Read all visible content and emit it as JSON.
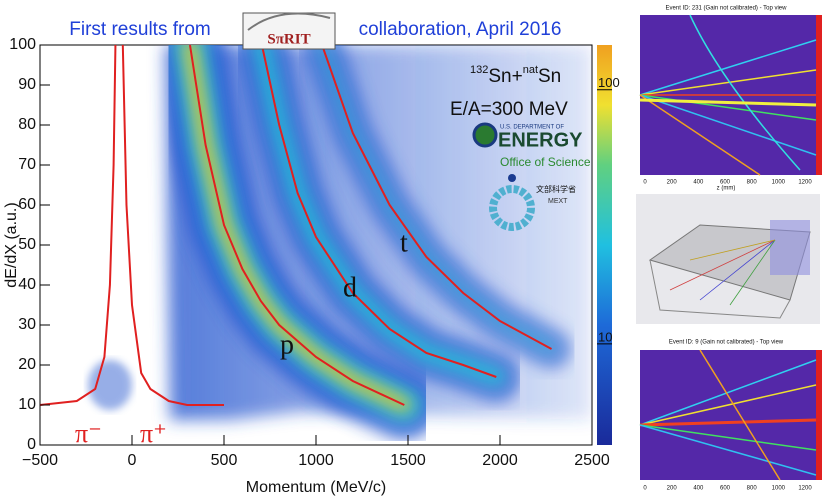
{
  "chart_data": {
    "type": "line",
    "title": {
      "prefix": "First results from",
      "logo": "SπRIT",
      "suffix": "collaboration, April 2016"
    },
    "xlabel": "Momentum (MeV/c)",
    "ylabel": "dE/dX (a.u.)",
    "xlim": [
      -500,
      2500
    ],
    "ylim": [
      0,
      100
    ],
    "xticks": [
      {
        "value": -500,
        "label": "−500"
      },
      0,
      500,
      1000,
      1500,
      2000,
      2500
    ],
    "yticks": [
      0,
      10,
      20,
      30,
      40,
      50,
      60,
      70,
      80,
      90,
      100
    ],
    "series": [
      {
        "name": "π⁻",
        "color": "#e02020",
        "x": [
          -500,
          -300,
          -200,
          -150,
          -120,
          -100,
          -90
        ],
        "values": [
          10,
          11,
          14,
          22,
          40,
          70,
          100
        ]
      },
      {
        "name": "π⁺",
        "color": "#e02020",
        "x": [
          -50,
          -30,
          0,
          50,
          100,
          200,
          300,
          500
        ],
        "values": [
          100,
          60,
          35,
          18,
          14,
          11,
          10,
          10
        ]
      },
      {
        "name": "p",
        "color": "#e02020",
        "x": [
          315,
          400,
          500,
          600,
          700,
          800,
          1000,
          1200,
          1480
        ],
        "values": [
          100,
          75,
          55,
          44,
          36,
          30,
          22,
          16,
          10
        ]
      },
      {
        "name": "d",
        "color": "#e02020",
        "x": [
          706,
          800,
          900,
          1000,
          1200,
          1400,
          1600,
          1800,
          1980
        ],
        "values": [
          100,
          80,
          63,
          52,
          38,
          29,
          23,
          20,
          17
        ]
      },
      {
        "name": "t",
        "color": "#e02020",
        "x": [
          1033,
          1200,
          1400,
          1600,
          1800,
          2000,
          2280
        ],
        "values": [
          100,
          78,
          60,
          47,
          38,
          31,
          24
        ]
      }
    ],
    "colorbar": {
      "log": true,
      "lim": [
        4,
        150
      ],
      "ticks": [
        10,
        100
      ]
    },
    "annotations": {
      "reaction": {
        "a_mass": "132",
        "a": "Sn+",
        "b_mass": "nat",
        "b": "Sn"
      },
      "energy": "E/A=300 MeV",
      "doe_top": "U.S. DEPARTMENT OF",
      "doe_name": "ENERGY",
      "office": "Office of Science",
      "mext_kanji": "文部科学省",
      "mext": "MEXT"
    }
  },
  "panels": [
    {
      "title": "Event ID: 231 (Gain not calibrated) - Top view",
      "xticks": [
        "0",
        "200",
        "400",
        "600",
        "800",
        "1000",
        "1200"
      ],
      "xlabel": "z (mm)"
    },
    {
      "title": "Event ID: 9 (Gain not calibrated) - Top view",
      "xticks": [
        "0",
        "200",
        "400",
        "600",
        "800",
        "1000",
        "1200"
      ]
    }
  ]
}
